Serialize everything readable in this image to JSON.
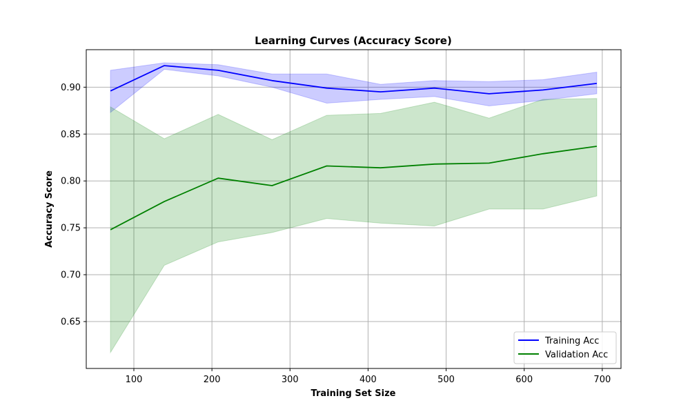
{
  "chart_data": {
    "type": "line",
    "title": "Learning Curves (Accuracy Score)",
    "xlabel": "Training Set Size",
    "ylabel": "Accuracy Score",
    "xlim": [
      39,
      724
    ],
    "ylim": [
      0.6,
      0.94
    ],
    "xticks": [
      100,
      200,
      300,
      400,
      500,
      600,
      700
    ],
    "yticks": [
      0.65,
      0.7,
      0.75,
      0.8,
      0.85,
      0.9
    ],
    "ytick_labels": [
      "0.65",
      "0.70",
      "0.75",
      "0.80",
      "0.85",
      "0.90"
    ],
    "grid": true,
    "legend_position": "lower-right",
    "x": [
      70,
      139,
      208,
      277,
      347,
      416,
      485,
      555,
      624,
      693
    ],
    "series": [
      {
        "name": "Training Acc",
        "color": "#0000ff",
        "band_color": "#0000ff",
        "values": [
          0.896,
          0.923,
          0.918,
          0.907,
          0.899,
          0.895,
          0.899,
          0.893,
          0.897,
          0.904
        ],
        "lower": [
          0.873,
          0.919,
          0.912,
          0.9,
          0.883,
          0.887,
          0.89,
          0.88,
          0.886,
          0.893
        ],
        "upper": [
          0.918,
          0.926,
          0.924,
          0.914,
          0.914,
          0.903,
          0.907,
          0.906,
          0.908,
          0.916
        ]
      },
      {
        "name": "Validation Acc",
        "color": "#008000",
        "band_color": "#008000",
        "values": [
          0.748,
          0.778,
          0.803,
          0.795,
          0.816,
          0.814,
          0.818,
          0.819,
          0.829,
          0.837
        ],
        "lower": [
          0.617,
          0.71,
          0.735,
          0.745,
          0.76,
          0.755,
          0.752,
          0.77,
          0.77,
          0.784
        ],
        "upper": [
          0.879,
          0.845,
          0.871,
          0.844,
          0.87,
          0.872,
          0.884,
          0.867,
          0.887,
          0.888
        ]
      }
    ]
  }
}
